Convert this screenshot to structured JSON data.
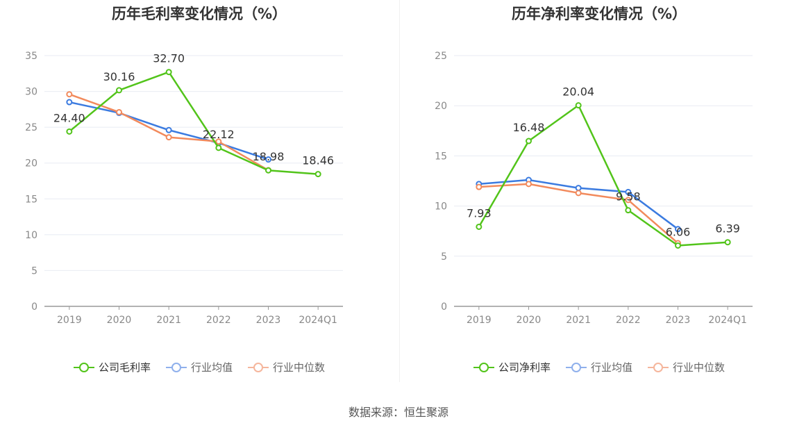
{
  "source": "数据来源：恒生聚源",
  "chart_data": [
    {
      "type": "line",
      "title": "历年毛利率变化情况（%）",
      "categories": [
        "2019",
        "2020",
        "2021",
        "2022",
        "2023",
        "2024Q1"
      ],
      "ylim": [
        0,
        35
      ],
      "yticks": [
        0,
        5,
        10,
        15,
        20,
        25,
        30,
        35
      ],
      "grid": true,
      "legend_position": "bottom",
      "labeled_series": 0,
      "series": [
        {
          "name": "公司毛利率",
          "color": "#52c41a",
          "values": [
            24.4,
            30.16,
            32.7,
            22.12,
            18.98,
            18.46
          ],
          "labels": [
            "24.40",
            "30.16",
            "32.70",
            "22.12",
            "18.98",
            "18.46"
          ]
        },
        {
          "name": "行业均值",
          "color": "#3b7be0",
          "values": [
            28.5,
            27.0,
            24.6,
            22.8,
            20.5,
            null
          ]
        },
        {
          "name": "行业中位数",
          "color": "#f28a5c",
          "values": [
            29.6,
            27.1,
            23.6,
            23.0,
            19.0,
            null
          ]
        }
      ]
    },
    {
      "type": "line",
      "title": "历年净利率变化情况（%）",
      "categories": [
        "2019",
        "2020",
        "2021",
        "2022",
        "2023",
        "2024Q1"
      ],
      "ylim": [
        0,
        25
      ],
      "yticks": [
        0,
        5,
        10,
        15,
        20,
        25
      ],
      "grid": true,
      "legend_position": "bottom",
      "labeled_series": 0,
      "series": [
        {
          "name": "公司净利率",
          "color": "#52c41a",
          "values": [
            7.93,
            16.48,
            20.04,
            9.58,
            6.06,
            6.39
          ],
          "labels": [
            "7.93",
            "16.48",
            "20.04",
            "9.58",
            "6.06",
            "6.39"
          ]
        },
        {
          "name": "行业均值",
          "color": "#3b7be0",
          "values": [
            12.2,
            12.6,
            11.8,
            11.4,
            7.7,
            null
          ]
        },
        {
          "name": "行业中位数",
          "color": "#f28a5c",
          "values": [
            11.9,
            12.2,
            11.3,
            10.6,
            6.3,
            null
          ]
        }
      ]
    }
  ]
}
